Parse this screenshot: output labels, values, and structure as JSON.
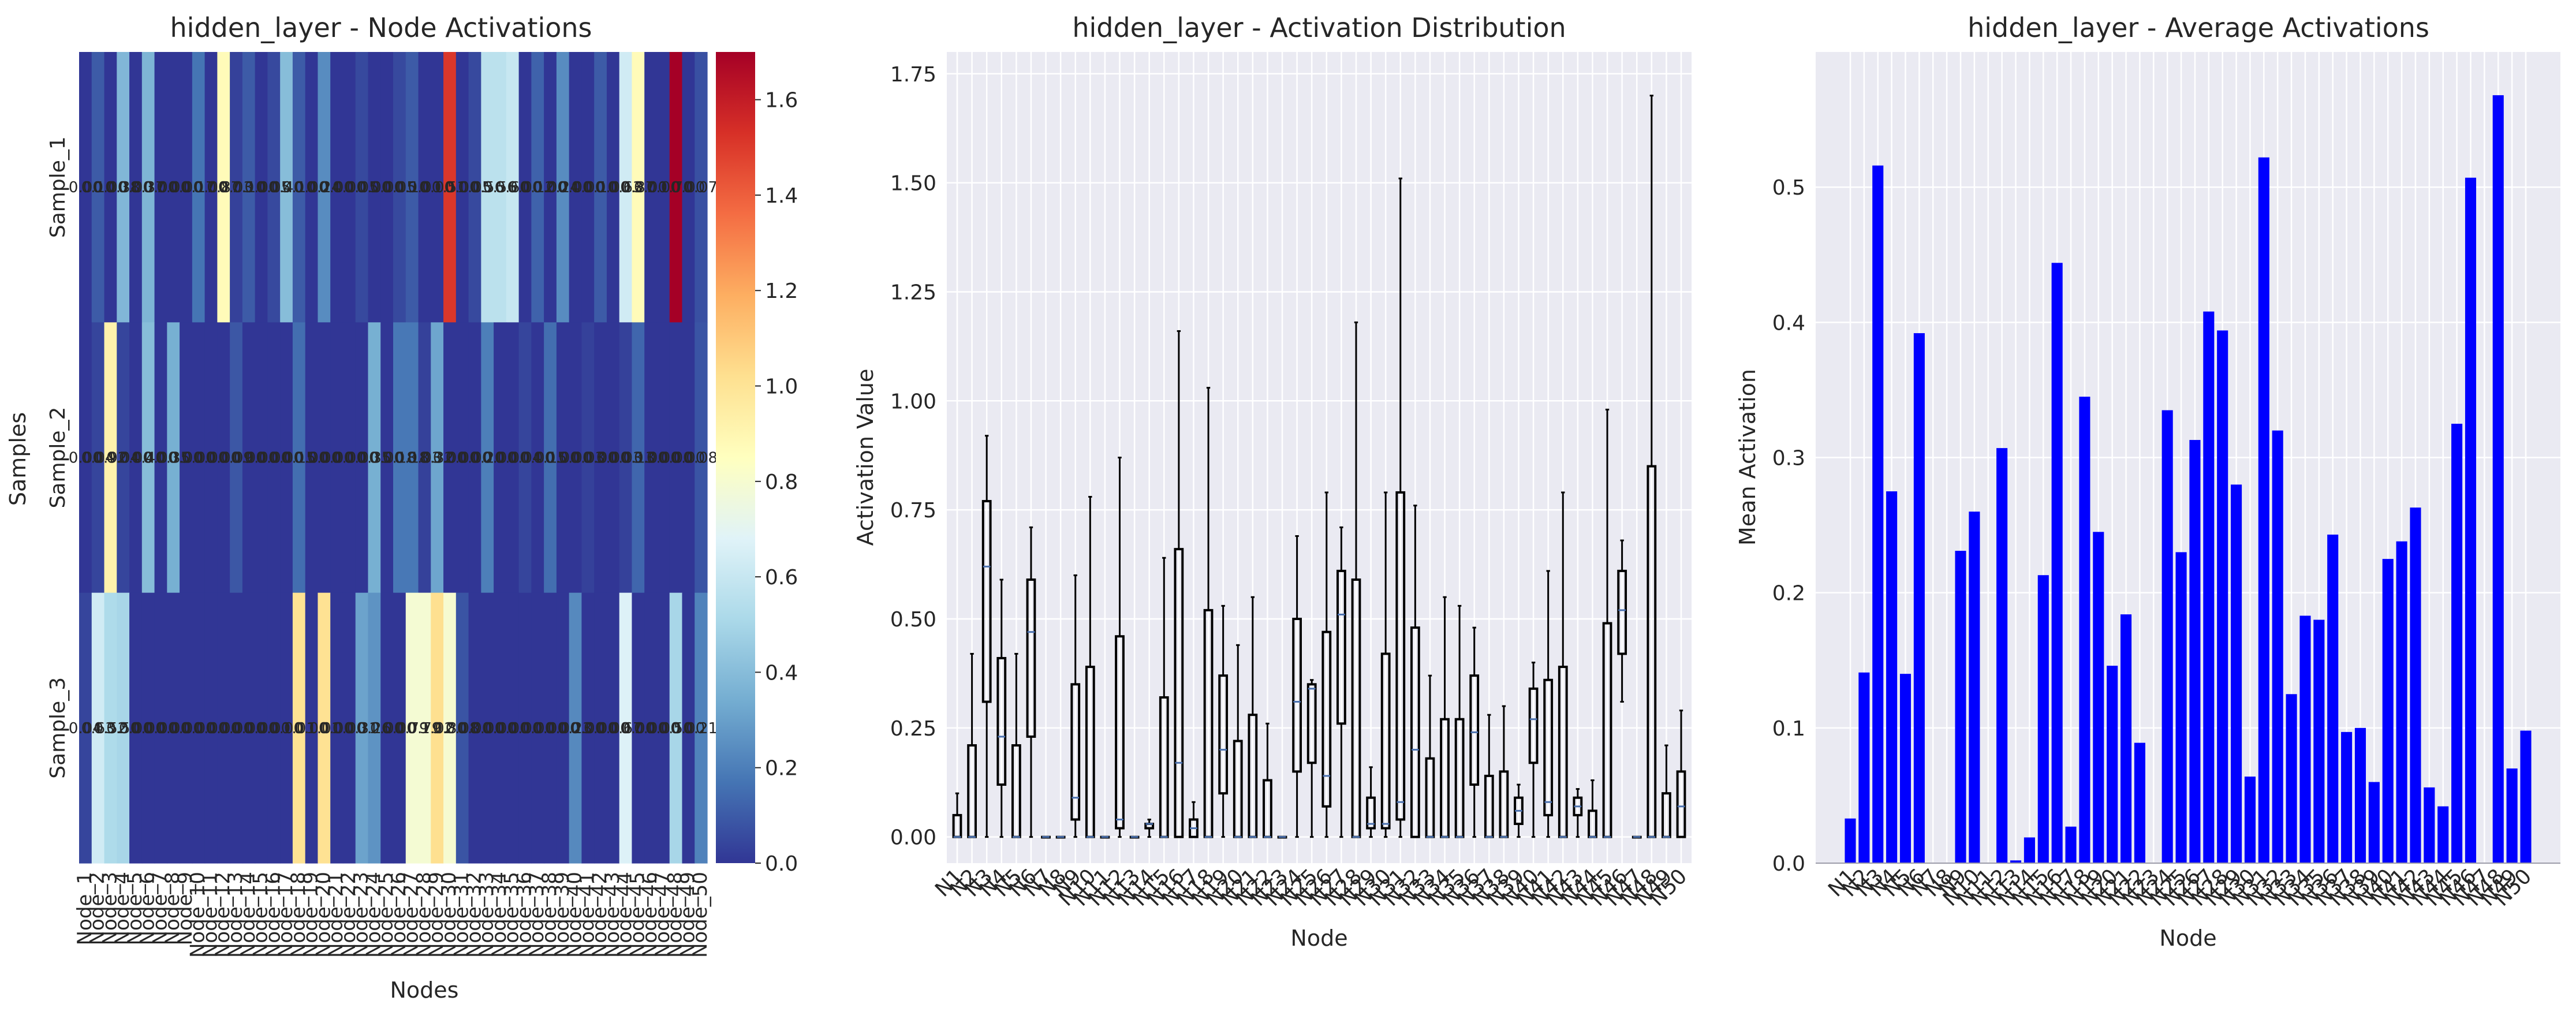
{
  "chart_data": [
    {
      "type": "heatmap",
      "title": "hidden_layer - Node Activations",
      "xlabel": "Nodes",
      "ylabel": "Samples",
      "rows": [
        "Sample_1",
        "Sample_2",
        "Sample_3"
      ],
      "columns": [
        "Node_1",
        "Node_2",
        "Node_3",
        "Node_4",
        "Node_5",
        "Node_6",
        "Node_7",
        "Node_8",
        "Node_9",
        "Node_10",
        "Node_11",
        "Node_12",
        "Node_13",
        "Node_14",
        "Node_15",
        "Node_16",
        "Node_17",
        "Node_18",
        "Node_19",
        "Node_20",
        "Node_21",
        "Node_22",
        "Node_23",
        "Node_24",
        "Node_25",
        "Node_26",
        "Node_27",
        "Node_28",
        "Node_29",
        "Node_30",
        "Node_31",
        "Node_32",
        "Node_33",
        "Node_34",
        "Node_35",
        "Node_36",
        "Node_37",
        "Node_38",
        "Node_39",
        "Node_40",
        "Node_41",
        "Node_42",
        "Node_43",
        "Node_44",
        "Node_45",
        "Node_46",
        "Node_47",
        "Node_48",
        "Node_49",
        "Node_50"
      ],
      "values": [
        [
          0.0,
          0.1,
          0.0,
          0.38,
          0.0,
          0.37,
          0.0,
          0.0,
          0.0,
          0.17,
          0.0,
          0.87,
          0.03,
          0.1,
          0.0,
          0.05,
          0.4,
          0.1,
          0.0,
          0.24,
          0.0,
          0.0,
          0.05,
          0.0,
          0.0,
          0.05,
          0.1,
          0.0,
          0.0,
          1.51,
          0.0,
          0.05,
          0.56,
          0.56,
          0.6,
          0.0,
          0.12,
          0.0,
          0.24,
          0.0,
          0.0,
          0.1,
          0.0,
          0.63,
          0.87,
          0.0,
          0.0,
          1.7,
          0.0,
          0.07
        ],
        [
          0.0,
          0.04,
          0.92,
          0.04,
          0.0,
          0.4,
          0.0,
          0.35,
          0.0,
          0.0,
          0.0,
          0.0,
          0.09,
          0.0,
          0.0,
          0.0,
          0.0,
          0.15,
          0.0,
          0.0,
          0.0,
          0.0,
          0.0,
          0.35,
          0.0,
          0.18,
          0.18,
          0.03,
          0.32,
          0.0,
          0.0,
          0.0,
          0.2,
          0.0,
          0.0,
          0.04,
          0.0,
          0.15,
          0.0,
          0.0,
          0.03,
          0.0,
          0.0,
          0.03,
          0.13,
          0.0,
          0.0,
          0.0,
          0.0,
          0.08
        ],
        [
          0.04,
          0.63,
          0.52,
          0.5,
          0.0,
          0.0,
          0.0,
          0.0,
          0.0,
          0.0,
          0.0,
          0.0,
          0.0,
          0.0,
          0.0,
          0.0,
          0.0,
          1.01,
          0.0,
          1.01,
          0.0,
          0.0,
          0.31,
          0.26,
          0.0,
          0.0,
          0.79,
          0.79,
          1.02,
          0.8,
          0.08,
          0.0,
          0.0,
          0.0,
          0.0,
          0.0,
          0.0,
          0.0,
          0.0,
          0.23,
          0.0,
          0.0,
          0.0,
          0.67,
          0.0,
          0.0,
          0.0,
          0.5,
          0.0,
          0.21
        ]
      ],
      "colorbar": {
        "min": 0.0,
        "max": 1.7,
        "ticks": [
          "0.0",
          "0.2",
          "0.4",
          "0.6",
          "0.8",
          "1.0",
          "1.2",
          "1.4",
          "1.6"
        ]
      }
    },
    {
      "type": "box",
      "title": "hidden_layer - Activation Distribution",
      "xlabel": "Node",
      "ylabel": "Activation Value",
      "categories": [
        "N1",
        "N2",
        "N3",
        "N4",
        "N5",
        "N6",
        "N7",
        "N8",
        "N9",
        "N10",
        "N11",
        "N12",
        "N13",
        "N14",
        "N15",
        "N16",
        "N17",
        "N18",
        "N19",
        "N20",
        "N21",
        "N22",
        "N23",
        "N24",
        "N25",
        "N26",
        "N27",
        "N28",
        "N29",
        "N30",
        "N31",
        "N32",
        "N33",
        "N34",
        "N35",
        "N36",
        "N37",
        "N38",
        "N39",
        "N40",
        "N41",
        "N42",
        "N43",
        "N44",
        "N45",
        "N46",
        "N47",
        "N48",
        "N49",
        "N50"
      ],
      "ylim": [
        -0.06,
        1.8
      ],
      "yticks": [
        "0.00",
        "0.25",
        "0.50",
        "0.75",
        "1.00",
        "1.25",
        "1.50",
        "1.75"
      ],
      "boxes": [
        {
          "q1": 0.0,
          "med": 0.0,
          "q3": 0.05,
          "wlo": 0.0,
          "whi": 0.1
        },
        {
          "q1": 0.0,
          "med": 0.0,
          "q3": 0.21,
          "wlo": 0.0,
          "whi": 0.42
        },
        {
          "q1": 0.31,
          "med": 0.62,
          "q3": 0.77,
          "wlo": 0.0,
          "whi": 0.92
        },
        {
          "q1": 0.12,
          "med": 0.23,
          "q3": 0.41,
          "wlo": 0.0,
          "whi": 0.59
        },
        {
          "q1": 0.0,
          "med": 0.0,
          "q3": 0.21,
          "wlo": 0.0,
          "whi": 0.42
        },
        {
          "q1": 0.23,
          "med": 0.47,
          "q3": 0.59,
          "wlo": 0.0,
          "whi": 0.71
        },
        {
          "q1": 0.0,
          "med": 0.0,
          "q3": 0.0,
          "wlo": 0.0,
          "whi": 0.0
        },
        {
          "q1": 0.0,
          "med": 0.0,
          "q3": 0.0,
          "wlo": 0.0,
          "whi": 0.0
        },
        {
          "q1": 0.04,
          "med": 0.09,
          "q3": 0.35,
          "wlo": 0.0,
          "whi": 0.6
        },
        {
          "q1": 0.0,
          "med": 0.0,
          "q3": 0.39,
          "wlo": 0.0,
          "whi": 0.78
        },
        {
          "q1": 0.0,
          "med": 0.0,
          "q3": 0.0,
          "wlo": 0.0,
          "whi": 0.0
        },
        {
          "q1": 0.02,
          "med": 0.04,
          "q3": 0.46,
          "wlo": 0.0,
          "whi": 0.87
        },
        {
          "q1": 0.0,
          "med": 0.0,
          "q3": 0.0,
          "wlo": 0.0,
          "whi": 0.0
        },
        {
          "q1": 0.02,
          "med": 0.03,
          "q3": 0.03,
          "wlo": 0.0,
          "whi": 0.04
        },
        {
          "q1": 0.0,
          "med": 0.0,
          "q3": 0.32,
          "wlo": 0.0,
          "whi": 0.64
        },
        {
          "q1": 0.0,
          "med": 0.17,
          "q3": 0.66,
          "wlo": 0.0,
          "whi": 1.16
        },
        {
          "q1": 0.0,
          "med": 0.02,
          "q3": 0.04,
          "wlo": 0.0,
          "whi": 0.08
        },
        {
          "q1": 0.0,
          "med": 0.0,
          "q3": 0.52,
          "wlo": 0.0,
          "whi": 1.03
        },
        {
          "q1": 0.1,
          "med": 0.2,
          "q3": 0.37,
          "wlo": 0.0,
          "whi": 0.53
        },
        {
          "q1": 0.0,
          "med": 0.0,
          "q3": 0.22,
          "wlo": 0.0,
          "whi": 0.44
        },
        {
          "q1": 0.0,
          "med": 0.0,
          "q3": 0.28,
          "wlo": 0.0,
          "whi": 0.55
        },
        {
          "q1": 0.0,
          "med": 0.0,
          "q3": 0.13,
          "wlo": 0.0,
          "whi": 0.26
        },
        {
          "q1": 0.0,
          "med": 0.0,
          "q3": 0.0,
          "wlo": 0.0,
          "whi": 0.0
        },
        {
          "q1": 0.15,
          "med": 0.31,
          "q3": 0.5,
          "wlo": 0.0,
          "whi": 0.69
        },
        {
          "q1": 0.17,
          "med": 0.34,
          "q3": 0.35,
          "wlo": 0.0,
          "whi": 0.36
        },
        {
          "q1": 0.07,
          "med": 0.14,
          "q3": 0.47,
          "wlo": 0.0,
          "whi": 0.79
        },
        {
          "q1": 0.26,
          "med": 0.51,
          "q3": 0.61,
          "wlo": 0.0,
          "whi": 0.71
        },
        {
          "q1": 0.0,
          "med": 0.0,
          "q3": 0.59,
          "wlo": 0.0,
          "whi": 1.18
        },
        {
          "q1": 0.02,
          "med": 0.03,
          "q3": 0.09,
          "wlo": 0.0,
          "whi": 0.16
        },
        {
          "q1": 0.02,
          "med": 0.03,
          "q3": 0.42,
          "wlo": 0.0,
          "whi": 0.79
        },
        {
          "q1": 0.04,
          "med": 0.08,
          "q3": 0.79,
          "wlo": 0.0,
          "whi": 1.51
        },
        {
          "q1": 0.0,
          "med": 0.2,
          "q3": 0.48,
          "wlo": 0.0,
          "whi": 0.76
        },
        {
          "q1": 0.0,
          "med": 0.0,
          "q3": 0.18,
          "wlo": 0.0,
          "whi": 0.37
        },
        {
          "q1": 0.0,
          "med": 0.0,
          "q3": 0.27,
          "wlo": 0.0,
          "whi": 0.55
        },
        {
          "q1": 0.0,
          "med": 0.0,
          "q3": 0.27,
          "wlo": 0.0,
          "whi": 0.53
        },
        {
          "q1": 0.12,
          "med": 0.24,
          "q3": 0.37,
          "wlo": 0.0,
          "whi": 0.48
        },
        {
          "q1": 0.0,
          "med": 0.0,
          "q3": 0.14,
          "wlo": 0.0,
          "whi": 0.28
        },
        {
          "q1": 0.0,
          "med": 0.0,
          "q3": 0.15,
          "wlo": 0.0,
          "whi": 0.3
        },
        {
          "q1": 0.03,
          "med": 0.06,
          "q3": 0.09,
          "wlo": 0.0,
          "whi": 0.12
        },
        {
          "q1": 0.17,
          "med": 0.27,
          "q3": 0.34,
          "wlo": 0.0,
          "whi": 0.4
        },
        {
          "q1": 0.05,
          "med": 0.08,
          "q3": 0.36,
          "wlo": 0.0,
          "whi": 0.61
        },
        {
          "q1": 0.0,
          "med": 0.0,
          "q3": 0.39,
          "wlo": 0.0,
          "whi": 0.79
        },
        {
          "q1": 0.05,
          "med": 0.07,
          "q3": 0.09,
          "wlo": 0.0,
          "whi": 0.11
        },
        {
          "q1": 0.0,
          "med": 0.0,
          "q3": 0.06,
          "wlo": 0.0,
          "whi": 0.13
        },
        {
          "q1": 0.0,
          "med": 0.0,
          "q3": 0.49,
          "wlo": 0.0,
          "whi": 0.98
        },
        {
          "q1": 0.42,
          "med": 0.52,
          "q3": 0.61,
          "wlo": 0.31,
          "whi": 0.68
        },
        {
          "q1": 0.0,
          "med": 0.0,
          "q3": 0.0,
          "wlo": 0.0,
          "whi": 0.0
        },
        {
          "q1": 0.0,
          "med": 0.0,
          "q3": 0.85,
          "wlo": 0.0,
          "whi": 1.7
        },
        {
          "q1": 0.0,
          "med": 0.0,
          "q3": 0.1,
          "wlo": 0.0,
          "whi": 0.21
        },
        {
          "q1": 0.0,
          "med": 0.07,
          "q3": 0.15,
          "wlo": 0.0,
          "whi": 0.29
        }
      ]
    },
    {
      "type": "bar",
      "title": "hidden_layer - Average Activations",
      "xlabel": "Node",
      "ylabel": "Mean Activation",
      "categories": [
        "N1",
        "N2",
        "N3",
        "N4",
        "N5",
        "N6",
        "N7",
        "N8",
        "N9",
        "N10",
        "N11",
        "N12",
        "N13",
        "N14",
        "N15",
        "N16",
        "N17",
        "N18",
        "N19",
        "N20",
        "N21",
        "N22",
        "N23",
        "N24",
        "N25",
        "N26",
        "N27",
        "N28",
        "N29",
        "N30",
        "N31",
        "N32",
        "N33",
        "N34",
        "N35",
        "N36",
        "N37",
        "N38",
        "N39",
        "N40",
        "N41",
        "N42",
        "N43",
        "N44",
        "N45",
        "N46",
        "N47",
        "N48",
        "N49",
        "N50"
      ],
      "values": [
        0.033,
        0.141,
        0.516,
        0.275,
        0.14,
        0.392,
        0.0,
        0.0,
        0.231,
        0.26,
        0.0,
        0.307,
        0.002,
        0.019,
        0.213,
        0.444,
        0.027,
        0.345,
        0.245,
        0.146,
        0.184,
        0.089,
        0.0,
        0.335,
        0.23,
        0.313,
        0.408,
        0.394,
        0.28,
        0.064,
        0.522,
        0.32,
        0.125,
        0.183,
        0.18,
        0.243,
        0.097,
        0.1,
        0.06,
        0.225,
        0.238,
        0.263,
        0.056,
        0.042,
        0.325,
        0.507,
        0.0,
        0.568,
        0.07,
        0.098
      ],
      "ylim": [
        0,
        0.6
      ],
      "yticks": [
        "0.0",
        "0.1",
        "0.2",
        "0.3",
        "0.4",
        "0.5"
      ],
      "color": "#0000ff"
    }
  ],
  "colors": {
    "panel_bg": "#eaeaf2",
    "grid": "#ffffff",
    "bar": "#0000ff",
    "text": "#262626"
  }
}
